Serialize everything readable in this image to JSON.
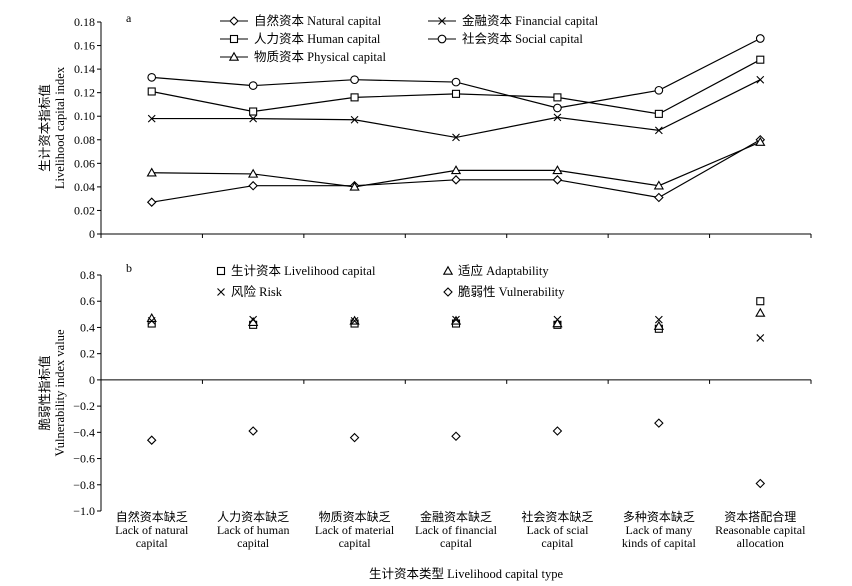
{
  "chart_data": [
    {
      "panel": "a",
      "type": "line",
      "ylabel": [
        "生计资本指标值",
        "Livelihood capital index"
      ],
      "ylim": [
        0,
        0.18
      ],
      "yticks": [
        "0",
        "0.02",
        "0.04",
        "0.06",
        "0.08",
        "0.10",
        "0.12",
        "0.14",
        "0.16",
        "0.18"
      ],
      "grid": false,
      "series": [
        {
          "name": "自然资本 Natural capital",
          "marker": "diamond",
          "values": [
            0.027,
            0.041,
            0.041,
            0.046,
            0.046,
            0.031,
            0.08
          ]
        },
        {
          "name": "金融资本 Financial capital",
          "marker": "cross",
          "values": [
            0.098,
            0.098,
            0.097,
            0.082,
            0.099,
            0.088,
            0.131
          ]
        },
        {
          "name": "人力资本 Human capital",
          "marker": "square",
          "values": [
            0.121,
            0.104,
            0.116,
            0.119,
            0.116,
            0.102,
            0.148
          ]
        },
        {
          "name": "社会资本 Social capital",
          "marker": "circle",
          "values": [
            0.133,
            0.126,
            0.131,
            0.129,
            0.107,
            0.122,
            0.166
          ]
        },
        {
          "name": "物质资本 Physical capital",
          "marker": "triangle",
          "values": [
            0.052,
            0.051,
            0.04,
            0.054,
            0.054,
            0.041,
            0.078
          ]
        }
      ]
    },
    {
      "panel": "b",
      "type": "scatter",
      "ylabel": [
        "脆弱性指标值",
        "Vulnerability index value"
      ],
      "ylim": [
        -1.0,
        0.8
      ],
      "yticks": [
        "0.8",
        "0.6",
        "0.4",
        "0.2",
        "0",
        "−0.2",
        "−0.4",
        "−0.6",
        "−0.8",
        "−1.0"
      ],
      "grid": false,
      "xlabel": "生计资本类型 Livelihood capital type",
      "categories": [
        [
          "自然资本缺乏",
          "Lack of natural",
          "capital"
        ],
        [
          "人力资本缺乏",
          "Lack of human",
          "capital"
        ],
        [
          "物质资本缺乏",
          "Lack of material",
          "capital"
        ],
        [
          "金融资本缺乏",
          "Lack of financial",
          "capital"
        ],
        [
          "社会资本缺乏",
          "Lack of scial",
          "capital"
        ],
        [
          "多种资本缺乏",
          "Lack of many",
          "kinds of capital"
        ],
        [
          "资本搭配合理",
          "Reasonable capital",
          "allocation"
        ]
      ],
      "series": [
        {
          "name": "生计资本 Livelihood capital",
          "marker": "square",
          "values": [
            0.43,
            0.42,
            0.43,
            0.43,
            0.42,
            0.39,
            0.6
          ]
        },
        {
          "name": "适应 Adaptability",
          "marker": "triangle",
          "values": [
            0.47,
            0.44,
            0.45,
            0.45,
            0.43,
            0.41,
            0.51
          ]
        },
        {
          "name": "风险 Risk",
          "marker": "cross",
          "values": [
            0.45,
            0.46,
            0.45,
            0.46,
            0.46,
            0.46,
            0.32
          ]
        },
        {
          "name": "脆弱性 Vulnerability",
          "marker": "diamond",
          "values": [
            -0.46,
            -0.39,
            -0.44,
            -0.43,
            -0.39,
            -0.33,
            -0.79
          ]
        }
      ]
    }
  ]
}
